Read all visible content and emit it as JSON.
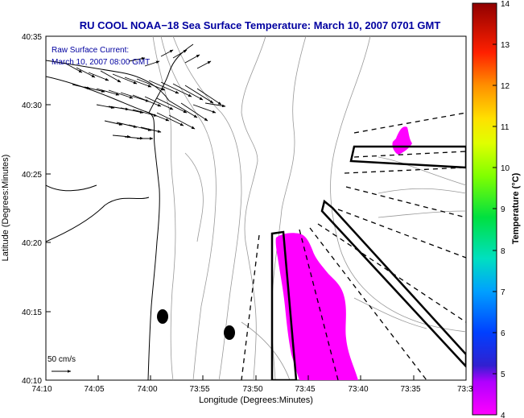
{
  "title": "RU COOL  NOAA−18  Sea Surface Temperature:  March 10, 2007 0701 GMT",
  "current_legend": {
    "line1": "Raw Surface Current:",
    "line2": "March 10, 2007 08:00 GMT"
  },
  "scale": {
    "label": "50 cm/s"
  },
  "axes": {
    "xlabel": "Longitude (Degrees:Minutes)",
    "ylabel": "Latitude (Degrees:Minutes)",
    "xticks": [
      "74:10",
      "74:05",
      "74:00",
      "73:55",
      "73:50",
      "73:45",
      "73:40",
      "73:35",
      "73:3"
    ],
    "yticks": [
      "40:35",
      "40:30",
      "40:25",
      "40:20",
      "40:15",
      "40:10"
    ]
  },
  "colorbar": {
    "label": "Temperature (°C)",
    "ticks": [
      "14",
      "13",
      "12",
      "11",
      "10",
      "9",
      "8",
      "7",
      "6",
      "5",
      "4"
    ],
    "range": [
      4,
      14
    ]
  },
  "colors": {
    "sst_patch": "#ff00ff",
    "title": "#0000a0",
    "bathymetry": "#888888"
  }
}
